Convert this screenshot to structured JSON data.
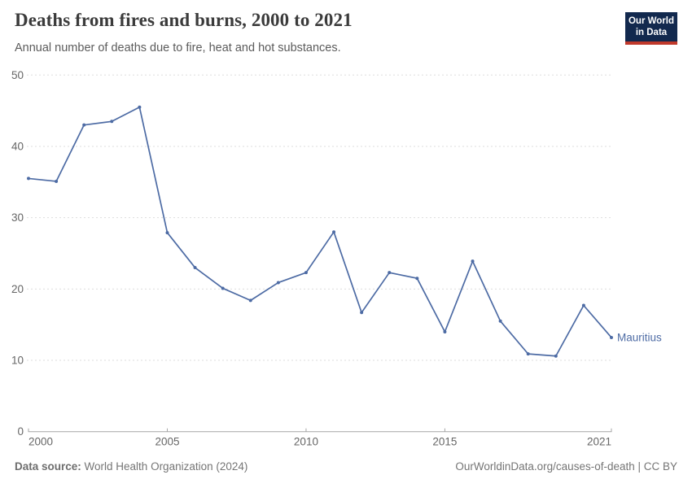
{
  "header": {
    "title": "Deaths from fires and burns, 2000 to 2021",
    "subtitle": "Annual number of deaths due to fire, heat and hot substances.",
    "logo": {
      "line1": "Our World",
      "line2": "in Data",
      "bg_color": "#12294E",
      "accent_color": "#C0392B"
    }
  },
  "footer": {
    "source_label": "Data source:",
    "source_value": " World Health Organization (2024)",
    "link_text": "OurWorldinData.org/causes-of-death | CC BY"
  },
  "chart_data": {
    "type": "line",
    "title": "Deaths from fires and burns, 2000 to 2021",
    "subtitle": "Annual number of deaths due to fire, heat and hot substances.",
    "xlabel": "",
    "ylabel": "",
    "x": [
      2000,
      2001,
      2002,
      2003,
      2004,
      2005,
      2006,
      2007,
      2008,
      2009,
      2010,
      2011,
      2012,
      2013,
      2014,
      2015,
      2016,
      2017,
      2018,
      2019,
      2020,
      2021
    ],
    "series": [
      {
        "name": "Mauritius",
        "color": "#4D6BA4",
        "values": [
          35.5,
          35.1,
          43.0,
          43.5,
          45.5,
          27.9,
          23.0,
          20.1,
          18.4,
          20.9,
          22.3,
          28.0,
          16.7,
          22.3,
          21.5,
          14.0,
          23.9,
          15.5,
          10.9,
          10.6,
          17.7,
          13.2
        ]
      }
    ],
    "ylim": [
      0,
      50
    ],
    "yticks": [
      0,
      10,
      20,
      30,
      40,
      50
    ],
    "xticks": [
      2000,
      2005,
      2010,
      2015,
      2021
    ],
    "grid": "horizontal-dashed",
    "legend_position": "end-of-line-label",
    "colors": {
      "grid": "#dddddd",
      "axis": "#a5a5a5",
      "tick_text": "#666666"
    }
  }
}
